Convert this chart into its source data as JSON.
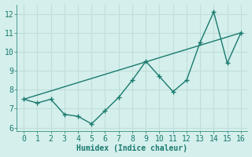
{
  "x": [
    0,
    1,
    2,
    3,
    4,
    5,
    6,
    7,
    8,
    9,
    10,
    11,
    12,
    13,
    14,
    15,
    16
  ],
  "y_data": [
    7.5,
    7.3,
    7.5,
    6.7,
    6.6,
    6.2,
    6.9,
    7.6,
    8.5,
    9.5,
    8.7,
    7.9,
    8.5,
    10.5,
    12.1,
    9.4,
    11.0
  ],
  "trend_x": [
    0,
    16
  ],
  "trend_y": [
    7.5,
    11.0
  ],
  "line_color": "#1a7a6e",
  "bg_color": "#d4efec",
  "grid_color": "#c0deda",
  "xlabel": "Humidex (Indice chaleur)",
  "xlim": [
    -0.5,
    16.5
  ],
  "ylim": [
    5.8,
    12.5
  ],
  "yticks": [
    6,
    7,
    8,
    9,
    10,
    11,
    12
  ],
  "xticks": [
    0,
    1,
    2,
    3,
    4,
    5,
    6,
    7,
    8,
    9,
    10,
    11,
    12,
    13,
    14,
    15,
    16
  ],
  "xlabel_fontsize": 7,
  "tick_fontsize": 7
}
